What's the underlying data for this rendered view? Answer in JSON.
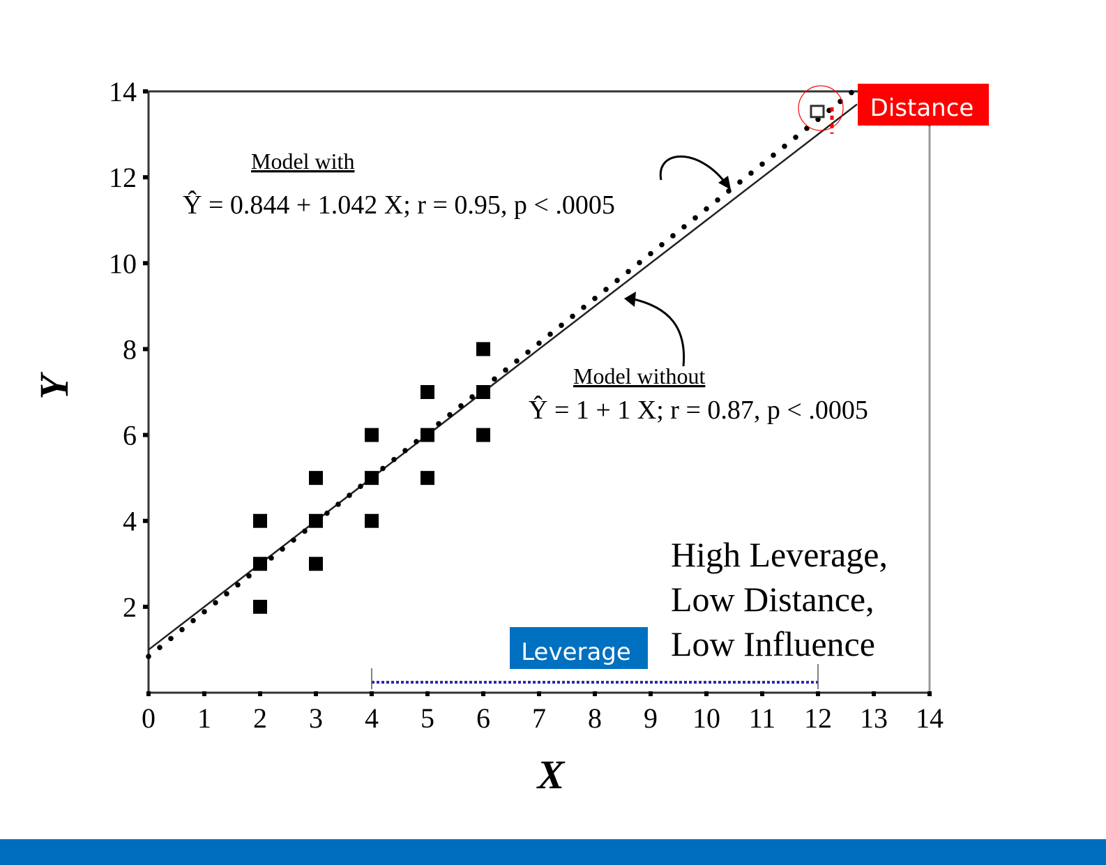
{
  "chart_data": {
    "type": "scatter",
    "xlabel": "X",
    "ylabel": "Y",
    "xlim": [
      0,
      14
    ],
    "ylim": [
      0,
      14
    ],
    "x_ticks": [
      0,
      1,
      2,
      3,
      4,
      5,
      6,
      7,
      8,
      9,
      10,
      11,
      12,
      13,
      14
    ],
    "y_ticks": [
      2,
      4,
      6,
      8,
      10,
      12,
      14
    ],
    "grid": false,
    "points": [
      {
        "x": 2,
        "y": 2
      },
      {
        "x": 2,
        "y": 3
      },
      {
        "x": 2,
        "y": 4
      },
      {
        "x": 3,
        "y": 3
      },
      {
        "x": 3,
        "y": 4
      },
      {
        "x": 3,
        "y": 5
      },
      {
        "x": 4,
        "y": 4
      },
      {
        "x": 4,
        "y": 5
      },
      {
        "x": 4,
        "y": 6
      },
      {
        "x": 5,
        "y": 5
      },
      {
        "x": 5,
        "y": 6
      },
      {
        "x": 5,
        "y": 7
      },
      {
        "x": 6,
        "y": 6
      },
      {
        "x": 6,
        "y": 7
      },
      {
        "x": 6,
        "y": 8
      }
    ],
    "outlier": {
      "x": 12,
      "y": 13.5
    },
    "series": [
      {
        "name": "Model with",
        "intercept": 0.844,
        "slope": 1.042,
        "style": "dotted",
        "equation": "Ŷ = 0.844 + 1.042 X; r = 0.95, p < .0005",
        "label": "Model with"
      },
      {
        "name": "Model without",
        "intercept": 1,
        "slope": 1,
        "style": "solid",
        "equation": "Ŷ = 1 + 1 X; r = 0.87, p < .0005",
        "label": "Model without"
      }
    ],
    "annotations": {
      "distance_label": "Distance",
      "leverage_label": "Leverage",
      "leverage_range": [
        4,
        12
      ],
      "summary_lines": [
        "High Leverage,",
        "Low Distance,",
        "Low Influence"
      ]
    }
  },
  "colors": {
    "distance": "#FF0000",
    "leverage": "#0070C0",
    "bottom_bar": "#006EBE",
    "leverage_line": "#2B2BB0"
  }
}
